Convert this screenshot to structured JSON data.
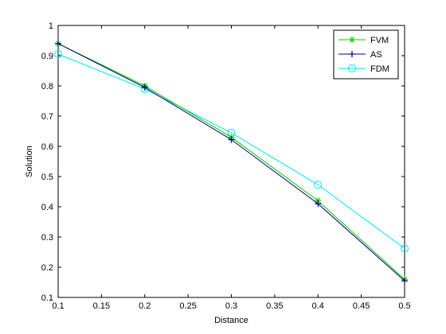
{
  "chart_data": {
    "type": "line",
    "xlabel": "Distance",
    "ylabel": "Solution",
    "xlim": [
      0.1,
      0.5
    ],
    "ylim": [
      0.1,
      1
    ],
    "xticks": [
      "0.1",
      "0.15",
      "0.2",
      "0.25",
      "0.3",
      "0.35",
      "0.4",
      "0.45",
      "0.5"
    ],
    "yticks": [
      "0.1",
      "0.2",
      "0.3",
      "0.4",
      "0.5",
      "0.6",
      "0.7",
      "0.8",
      "0.9",
      "1"
    ],
    "grid": false,
    "legend_position": "top-right",
    "x": [
      0.1,
      0.2,
      0.3,
      0.4,
      0.5
    ],
    "series": [
      {
        "name": "FVM",
        "marker": "star",
        "color": "#00cc00",
        "values": [
          0.94,
          0.8,
          0.63,
          0.42,
          0.16
        ]
      },
      {
        "name": "AS",
        "marker": "plus",
        "color": "#000080",
        "values": [
          0.94,
          0.795,
          0.622,
          0.41,
          0.155
        ]
      },
      {
        "name": "FDM",
        "marker": "circle",
        "color": "#00e5ee",
        "values": [
          0.905,
          0.79,
          0.645,
          0.473,
          0.262
        ]
      }
    ]
  }
}
